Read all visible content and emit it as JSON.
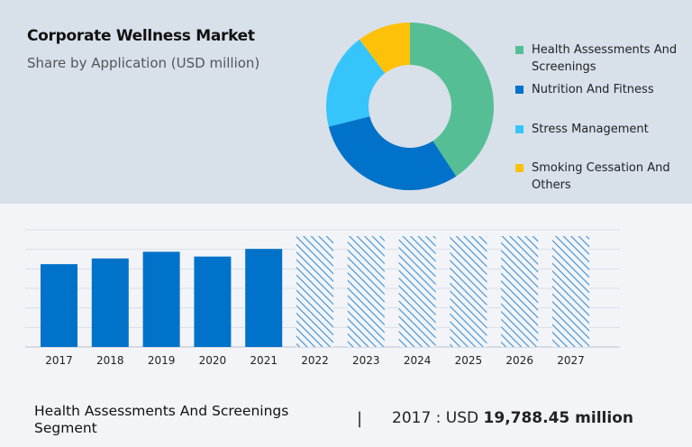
{
  "header": {
    "title": "Corporate Wellness Market",
    "subtitle": "Share by Application (USD million)"
  },
  "chart_data": [
    {
      "type": "pie",
      "variant": "donut",
      "segments": [
        {
          "name": "Health Assessments And Screenings",
          "share": 40.7,
          "color": "#56be94"
        },
        {
          "name": "Nutrition And Fitness",
          "share": 30.4,
          "color": "#0072c9"
        },
        {
          "name": "Stress Management",
          "share": 18.6,
          "color": "#36c5fb"
        },
        {
          "name": "Smoking Cessation And Others",
          "share": 10.3,
          "color": "#fdc10a"
        }
      ],
      "legend": "right"
    },
    {
      "type": "bar",
      "categories": [
        "2017",
        "2018",
        "2019",
        "2020",
        "2021",
        "2022",
        "2023",
        "2024",
        "2025",
        "2026",
        "2027"
      ],
      "values": [
        19788.45,
        21150,
        22750,
        21610,
        23430,
        null,
        null,
        null,
        null,
        null,
        null
      ],
      "forecast": [
        false,
        false,
        false,
        false,
        false,
        true,
        true,
        true,
        true,
        true,
        true
      ],
      "ylim": [
        0,
        28000
      ],
      "grid": true,
      "bar_color": "#0072c9",
      "forecast_style": "hatched"
    }
  ],
  "footer": {
    "segment": "Health Assessments And Screenings Segment",
    "separator": "|",
    "year_label": "2017 : USD",
    "value": "19,788.45 million"
  }
}
